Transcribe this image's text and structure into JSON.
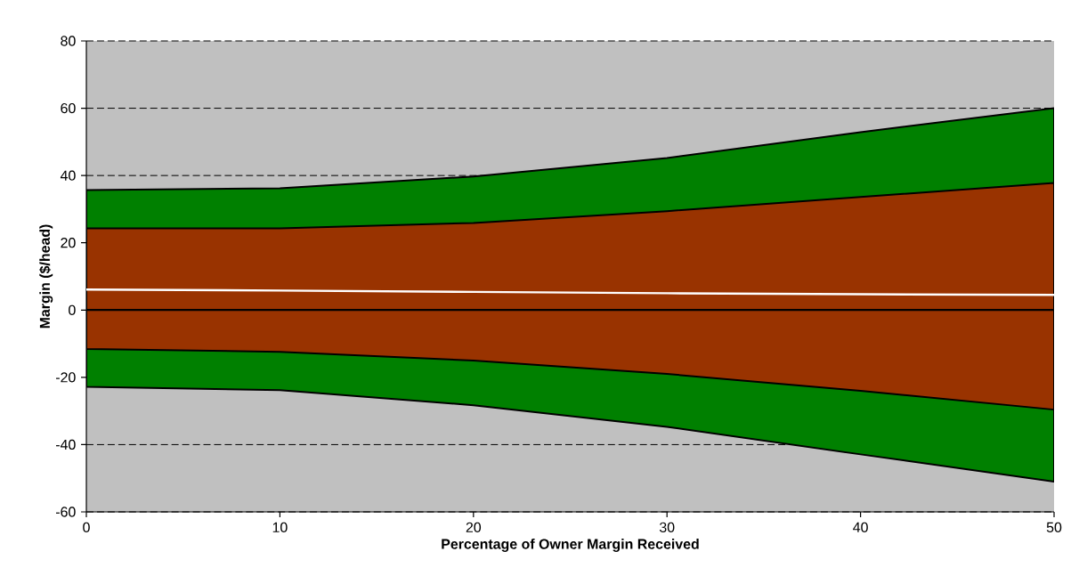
{
  "chart_data": {
    "type": "area",
    "xlabel": "Percentage of Owner Margin Received",
    "ylabel": "Margin ($/head)",
    "x": [
      0,
      10,
      20,
      30,
      40,
      50
    ],
    "series": [
      {
        "color": "#008000",
        "values": [
          35.7,
          36.2,
          39.7,
          45.2,
          52.9,
          60
        ]
      },
      {
        "color": "#993300",
        "values": [
          24.3,
          24.3,
          25.9,
          29.4,
          33.6,
          37.8
        ]
      },
      {
        "color": "#008000",
        "values": [
          -22.8,
          -23.8,
          -28.3,
          -34.7,
          -42.9,
          -51
        ]
      },
      {
        "color": "#993300",
        "values": [
          -11.6,
          -12.4,
          -15,
          -19,
          -24,
          -29.6
        ]
      },
      {
        "type": "line",
        "color": "#ffffff",
        "values": [
          6.1,
          5.8,
          5.4,
          5,
          4.7,
          4.5
        ]
      }
    ],
    "xlim": [
      0,
      50
    ],
    "xticks": [
      0,
      10,
      20,
      30,
      40,
      50
    ],
    "ylim": [
      -60,
      80
    ],
    "yticks": [
      -60,
      -40,
      -20,
      0,
      20,
      40,
      60,
      80
    ],
    "grid": "y"
  }
}
